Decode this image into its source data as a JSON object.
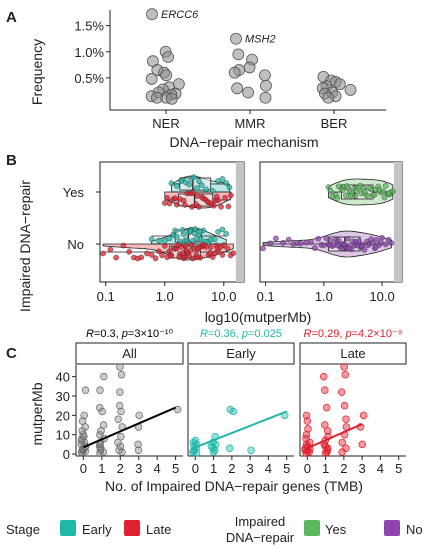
{
  "panels": {
    "A": "A",
    "B": "B",
    "C": "C"
  },
  "colors": {
    "early": "#1fb8a8",
    "late": "#e0202e",
    "yes": "#5cb85c",
    "no": "#8e44ad",
    "grey_point": "#8c8c8c",
    "all_line": "#000000",
    "box_fill": "#ececec"
  },
  "chart_data": [
    {
      "id": "A",
      "type": "scatter",
      "ylabel": "Frequency",
      "xlabel": "DNA−repair mechanism",
      "categories": [
        "NER",
        "MMR",
        "BER"
      ],
      "ylim": [
        0,
        1.8
      ],
      "yticks": [
        0.5,
        1.0,
        1.5
      ],
      "ytick_labels": [
        "0.5%",
        "1.0%",
        "1.5%"
      ],
      "points": [
        {
          "cat": "NER",
          "y": 1.72,
          "label": "ERCC6"
        },
        {
          "cat": "NER",
          "y": 1.0
        },
        {
          "cat": "NER",
          "y": 0.9
        },
        {
          "cat": "NER",
          "y": 0.82
        },
        {
          "cat": "NER",
          "y": 0.65
        },
        {
          "cat": "NER",
          "y": 0.6
        },
        {
          "cat": "NER",
          "y": 0.55
        },
        {
          "cat": "NER",
          "y": 0.48
        },
        {
          "cat": "NER",
          "y": 0.38
        },
        {
          "cat": "NER",
          "y": 0.32
        },
        {
          "cat": "NER",
          "y": 0.28
        },
        {
          "cat": "NER",
          "y": 0.22
        },
        {
          "cat": "NER",
          "y": 0.2
        },
        {
          "cat": "NER",
          "y": 0.18
        },
        {
          "cat": "NER",
          "y": 0.15
        },
        {
          "cat": "NER",
          "y": 0.12
        },
        {
          "cat": "NER",
          "y": 0.12
        },
        {
          "cat": "NER",
          "y": 0.1
        },
        {
          "cat": "MMR",
          "y": 1.25,
          "label": "MSH2"
        },
        {
          "cat": "MMR",
          "y": 0.95
        },
        {
          "cat": "MMR",
          "y": 0.85
        },
        {
          "cat": "MMR",
          "y": 0.7
        },
        {
          "cat": "MMR",
          "y": 0.65
        },
        {
          "cat": "MMR",
          "y": 0.6
        },
        {
          "cat": "MMR",
          "y": 0.55
        },
        {
          "cat": "MMR",
          "y": 0.35
        },
        {
          "cat": "MMR",
          "y": 0.3
        },
        {
          "cat": "MMR",
          "y": 0.22
        },
        {
          "cat": "MMR",
          "y": 0.12
        },
        {
          "cat": "BER",
          "y": 0.52
        },
        {
          "cat": "BER",
          "y": 0.45
        },
        {
          "cat": "BER",
          "y": 0.42
        },
        {
          "cat": "BER",
          "y": 0.38
        },
        {
          "cat": "BER",
          "y": 0.34
        },
        {
          "cat": "BER",
          "y": 0.3
        },
        {
          "cat": "BER",
          "y": 0.27
        },
        {
          "cat": "BER",
          "y": 0.22
        },
        {
          "cat": "BER",
          "y": 0.2
        },
        {
          "cat": "BER",
          "y": 0.15
        },
        {
          "cat": "BER",
          "y": 0.12
        }
      ]
    },
    {
      "id": "B",
      "type": "scatter",
      "ylabel": "Impaired DNA−repair",
      "xlabel": "log10(mutperMb)",
      "categories": [
        "Yes",
        "No"
      ],
      "xscale": "log",
      "xlim": [
        0.08,
        22
      ],
      "xticks": [
        0.1,
        1.0,
        10.0
      ],
      "xtick_labels": [
        "0.1",
        "1.0",
        "10.0"
      ],
      "shaded_region": [
        16,
        22
      ],
      "subpanels": [
        {
          "name": "stage",
          "groups": [
            {
              "cat": "Yes",
              "series": "Early",
              "points": [
                1.3,
                1.6,
                2.0,
                2.3,
                2.8,
                3.1,
                3.5,
                4.2,
                5.0,
                6.5,
                8.0,
                9.5,
                11.0,
                12.5,
                1.9,
                2.6,
                3.8
              ]
            },
            {
              "cat": "Yes",
              "series": "Late",
              "points": [
                1.0,
                1.2,
                1.4,
                1.6,
                1.8,
                2.1,
                2.4,
                2.7,
                3.0,
                3.4,
                3.8,
                4.3,
                4.9,
                5.6,
                6.3,
                7.1,
                8.0,
                9.0,
                10.5,
                12.0,
                13.2,
                1.1,
                1.5,
                2.2,
                2.9,
                3.6,
                4.5,
                5.3,
                6.8,
                7.6
              ]
            },
            {
              "cat": "No",
              "series": "Early",
              "points": [
                0.6,
                0.8,
                1.0,
                1.2,
                1.4,
                1.6,
                1.8,
                2.0,
                2.2,
                2.4,
                2.6,
                2.8,
                3.0,
                3.2,
                3.5,
                3.8,
                4.1,
                4.5,
                5.0,
                5.5,
                6.0,
                7.0,
                8.0,
                9.5,
                11.0,
                1.5,
                2.1,
                2.7,
                3.3,
                4.0
              ]
            },
            {
              "cat": "No",
              "series": "Late",
              "points": [
                0.09,
                0.12,
                0.15,
                0.2,
                0.25,
                0.3,
                0.35,
                0.4,
                0.5,
                0.6,
                0.7,
                0.8,
                0.9,
                1.0,
                1.1,
                1.2,
                1.3,
                1.4,
                1.5,
                1.6,
                1.7,
                1.8,
                1.9,
                2.0,
                2.1,
                2.2,
                2.3,
                2.4,
                2.5,
                2.6,
                2.8,
                3.0,
                3.2,
                3.4,
                3.6,
                3.8,
                4.0,
                4.3,
                4.6,
                5.0,
                5.5,
                6.0,
                6.5,
                7.0,
                7.5,
                8.0,
                9.0,
                10.0,
                11.5,
                13.0,
                14.5,
                1.25,
                1.75,
                2.25,
                2.75,
                3.5,
                4.5,
                5.8,
                7.8,
                9.5
              ]
            }
          ],
          "boxes": [
            {
              "cat": "Yes",
              "series": "Early",
              "q1": 1.8,
              "median": 3.0,
              "q3": 6.0,
              "lo": 1.3,
              "hi": 12.5
            },
            {
              "cat": "Yes",
              "series": "Late",
              "q1": 1.7,
              "median": 3.2,
              "q3": 6.5,
              "lo": 1.0,
              "hi": 13.2
            },
            {
              "cat": "No",
              "series": "Early",
              "q1": 1.5,
              "median": 2.5,
              "q3": 4.2,
              "lo": 0.6,
              "hi": 11.0
            },
            {
              "cat": "No",
              "series": "Late",
              "q1": 1.2,
              "median": 2.2,
              "q3": 4.0,
              "lo": 0.09,
              "hi": 14.5
            }
          ]
        },
        {
          "name": "impaired",
          "groups": [
            {
              "cat": "Yes",
              "series": "Yes",
              "points": [
                1.2,
                1.4,
                1.6,
                1.8,
                2.0,
                2.2,
                2.4,
                2.6,
                2.8,
                3.0,
                3.3,
                3.6,
                4.0,
                4.4,
                4.8,
                5.3,
                5.8,
                6.4,
                7.0,
                7.8,
                8.6,
                9.5,
                10.5,
                11.5,
                12.5,
                13.5,
                14.5,
                15.3,
                1.3,
                1.7,
                2.1,
                2.5,
                2.9,
                3.5,
                4.2,
                5.0,
                6.0,
                7.4,
                9.0,
                11.0,
                13.0
              ]
            },
            {
              "cat": "No",
              "series": "No",
              "points": [
                0.09,
                0.12,
                0.15,
                0.2,
                0.25,
                0.3,
                0.35,
                0.4,
                0.5,
                0.6,
                0.7,
                0.8,
                0.9,
                1.0,
                1.1,
                1.2,
                1.3,
                1.4,
                1.5,
                1.6,
                1.7,
                1.8,
                1.9,
                2.0,
                2.1,
                2.2,
                2.3,
                2.4,
                2.5,
                2.6,
                2.8,
                3.0,
                3.2,
                3.4,
                3.6,
                3.8,
                4.0,
                4.3,
                4.6,
                5.0,
                5.5,
                6.0,
                6.5,
                7.0,
                7.5,
                8.0,
                9.0,
                10.0,
                11.5,
                13.0,
                14.5,
                1.25,
                1.75,
                2.25,
                2.75,
                3.5,
                4.5,
                5.8,
                7.8,
                9.5
              ]
            }
          ],
          "boxes": [
            {
              "cat": "Yes",
              "series": "Yes",
              "q1": 2.0,
              "median": 3.4,
              "q3": 7.0,
              "lo": 1.2,
              "hi": 15.3
            },
            {
              "cat": "No",
              "series": "No",
              "q1": 1.2,
              "median": 2.3,
              "q3": 4.2,
              "lo": 0.09,
              "hi": 14.5
            }
          ]
        }
      ]
    },
    {
      "id": "C",
      "type": "scatter",
      "ylabel": "mutperMb",
      "xlabel": "No. of Impaired DNA−repair genes (TMB)",
      "xlim": [
        -0.4,
        5.4
      ],
      "ylim": [
        -1,
        46
      ],
      "xticks": [
        0,
        1,
        2,
        3,
        4,
        5
      ],
      "yticks": [
        0,
        10,
        20,
        30,
        40
      ],
      "facets": [
        {
          "title": "All",
          "stat_r": "0.3",
          "stat_p": "3×10⁻¹⁰",
          "line": [
            [
              0,
              3.5
            ],
            [
              5,
              24
            ]
          ],
          "points": [
            [
              0,
              0.5
            ],
            [
              0,
              1
            ],
            [
              0,
              1.5
            ],
            [
              0,
              2
            ],
            [
              0,
              2.5
            ],
            [
              0,
              3
            ],
            [
              0,
              3.5
            ],
            [
              0,
              4
            ],
            [
              0,
              5
            ],
            [
              0,
              6
            ],
            [
              0,
              7
            ],
            [
              0,
              8
            ],
            [
              0,
              9
            ],
            [
              0,
              10
            ],
            [
              0,
              12
            ],
            [
              0,
              14
            ],
            [
              0,
              17
            ],
            [
              0,
              20
            ],
            [
              0,
              33
            ],
            [
              1,
              0.5
            ],
            [
              1,
              1
            ],
            [
              1,
              2
            ],
            [
              1,
              3
            ],
            [
              1,
              4
            ],
            [
              1,
              5
            ],
            [
              1,
              6
            ],
            [
              1,
              8
            ],
            [
              1,
              10
            ],
            [
              1,
              12
            ],
            [
              1,
              15
            ],
            [
              1,
              22
            ],
            [
              1,
              24
            ],
            [
              1,
              33
            ],
            [
              1,
              40
            ],
            [
              2,
              1
            ],
            [
              2,
              2
            ],
            [
              2,
              4
            ],
            [
              2,
              6
            ],
            [
              2,
              9
            ],
            [
              2,
              14
            ],
            [
              2,
              18
            ],
            [
              2,
              22
            ],
            [
              2,
              25
            ],
            [
              2,
              32
            ],
            [
              2,
              41
            ],
            [
              2,
              45
            ],
            [
              3,
              2
            ],
            [
              3,
              5
            ],
            [
              3,
              14
            ],
            [
              3,
              20
            ],
            [
              5,
              23
            ]
          ]
        },
        {
          "title": "Early",
          "stat_r": "0.36",
          "stat_p": "0.025",
          "line": [
            [
              0,
              3.5
            ],
            [
              5,
              22
            ]
          ],
          "points": [
            [
              0,
              0.5
            ],
            [
              0,
              1
            ],
            [
              0,
              1.5
            ],
            [
              0,
              2
            ],
            [
              0,
              3
            ],
            [
              0,
              4
            ],
            [
              0,
              5
            ],
            [
              0,
              6
            ],
            [
              0,
              7
            ],
            [
              1,
              1
            ],
            [
              1,
              2
            ],
            [
              1,
              3
            ],
            [
              1,
              4
            ],
            [
              1,
              5
            ],
            [
              1,
              6
            ],
            [
              1,
              9
            ],
            [
              2,
              3
            ],
            [
              2,
              22
            ],
            [
              2,
              23
            ],
            [
              3,
              2
            ],
            [
              5,
              20
            ]
          ]
        },
        {
          "title": "Late",
          "stat_r": "0.29",
          "stat_p": "4.2×10⁻⁹",
          "line": [
            [
              0,
              3
            ],
            [
              3,
              15.5
            ]
          ],
          "points": [
            [
              0,
              0.5
            ],
            [
              0,
              1
            ],
            [
              0,
              1.5
            ],
            [
              0,
              2
            ],
            [
              0,
              2.5
            ],
            [
              0,
              3
            ],
            [
              0,
              4
            ],
            [
              0,
              5
            ],
            [
              0,
              6
            ],
            [
              0,
              8
            ],
            [
              0,
              10
            ],
            [
              0,
              13
            ],
            [
              0,
              17
            ],
            [
              0,
              20
            ],
            [
              1,
              0.5
            ],
            [
              1,
              1
            ],
            [
              1,
              2
            ],
            [
              1,
              3
            ],
            [
              1,
              4
            ],
            [
              1,
              5
            ],
            [
              1,
              7
            ],
            [
              1,
              9
            ],
            [
              1,
              12
            ],
            [
              1,
              15
            ],
            [
              1,
              24
            ],
            [
              1,
              33
            ],
            [
              1,
              40
            ],
            [
              2,
              1
            ],
            [
              2,
              3
            ],
            [
              2,
              6
            ],
            [
              2,
              10
            ],
            [
              2,
              14
            ],
            [
              2,
              18
            ],
            [
              2,
              25
            ],
            [
              2,
              32
            ],
            [
              2,
              41
            ],
            [
              2,
              45
            ],
            [
              3,
              5
            ],
            [
              3,
              14
            ],
            [
              3,
              20
            ]
          ]
        }
      ]
    }
  ],
  "legend": {
    "stage_title": "Stage",
    "stage_items": [
      {
        "label": "Early",
        "color": "#1fb8a8"
      },
      {
        "label": "Late",
        "color": "#e0202e"
      }
    ],
    "impaired_title_1": "Impaired",
    "impaired_title_2": "DNA−repair",
    "impaired_items": [
      {
        "label": "Yes",
        "color": "#5cb85c"
      },
      {
        "label": "No",
        "color": "#8e44ad"
      }
    ]
  }
}
